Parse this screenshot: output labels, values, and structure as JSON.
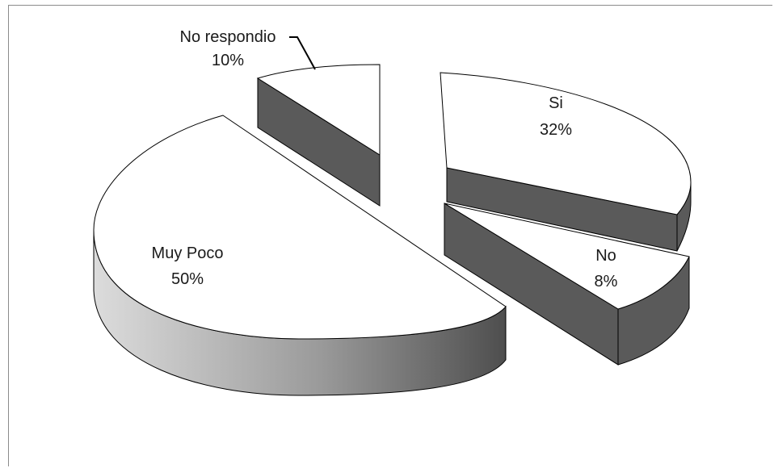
{
  "chart_data": {
    "type": "pie",
    "style": "3d-exploded",
    "title": "",
    "slices": [
      {
        "label": "Si",
        "value": 32,
        "percent_label": "32%"
      },
      {
        "label": "No",
        "value": 8,
        "percent_label": "8%"
      },
      {
        "label": "Muy Poco",
        "value": 50,
        "percent_label": "50%"
      },
      {
        "label": "No respondio",
        "value": 10,
        "percent_label": "10%"
      }
    ],
    "colors": {
      "top": "#ffffff",
      "side_dark": "#5a5a5a",
      "side_light": "#dcdcdc",
      "outline": "#000000",
      "frame": "#8c8c8c"
    }
  }
}
